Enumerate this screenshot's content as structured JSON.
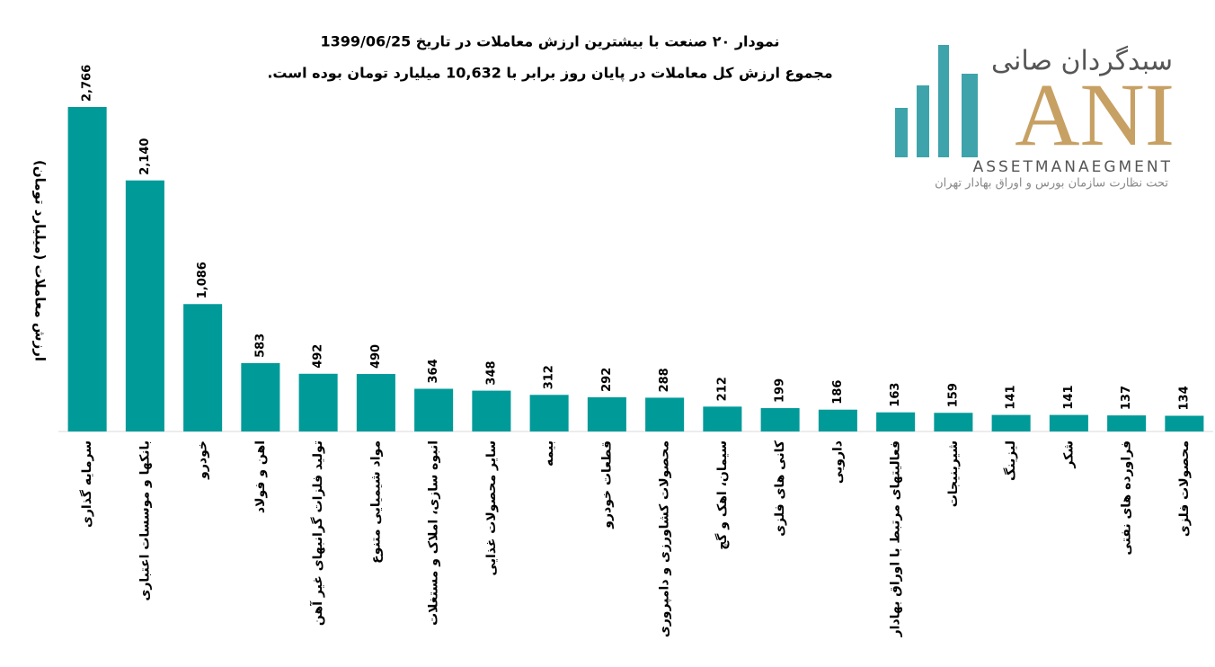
{
  "chart_data": {
    "type": "bar",
    "title": "نمودار ۲۰ صنعت با بیشترین ارزش معاملات در تاریخ 1399/06/25",
    "subtitle": "مجموع ارزش  کل معاملات در پایان روز برابر با 10,632 میلیارد تومان بوده است.",
    "y_label": "ارزش معاملات (میلیارد تومان)",
    "categories": [
      "سرمایه گذاری",
      "بانکها و موسسات اعتباری",
      "خودرو",
      "اهن و فولاد",
      "تولید فلزات گرانبهای غیر آهن",
      "مواد شیمیایی متنوع",
      "انبوه سازی، املاک و مستغلات",
      "سایر محصولات غذایی",
      "بیمه",
      "قطعات خودرو",
      "محصولات کشاورزی و دامپروری",
      "سیمان، اهک و گچ",
      "کانی های فلزی",
      "دارویی",
      "فعالیتهای مرتبط با اوراق بهادار",
      "شیرینیجات",
      "لیزینگ",
      "شکر",
      "فراورده های نفتی",
      "محصولات فلزی"
    ],
    "values": [
      2766,
      2140,
      1086,
      583,
      492,
      490,
      364,
      348,
      312,
      292,
      288,
      212,
      199,
      186,
      163,
      159,
      141,
      141,
      137,
      134
    ],
    "value_labels": [
      "2,766",
      "2,140",
      "1,086",
      "583",
      "492",
      "490",
      "364",
      "348",
      "312",
      "292",
      "288",
      "212",
      "199",
      "186",
      "163",
      "159",
      "141",
      "141",
      "137",
      "134"
    ],
    "color": "#009a99",
    "ylim": [
      0,
      2766
    ]
  },
  "logo": {
    "name": "سبدگردان صانی",
    "mark": "ANI",
    "english": "ASSETMANAEGMENT",
    "tagline": "تحت نظارت سازمان بورس و اوراق بهادار تهران"
  }
}
